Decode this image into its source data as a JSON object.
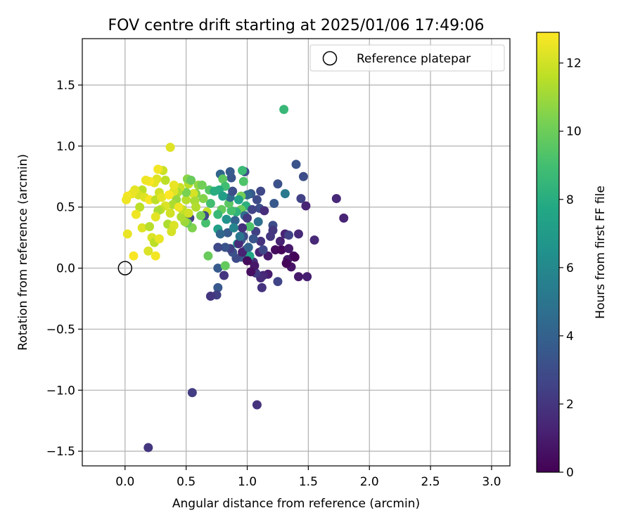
{
  "chart_data": {
    "type": "scatter",
    "title": "FOV centre drift starting at 2025/01/06 17:49:06",
    "xlabel": "Angular distance from reference (arcmin)",
    "ylabel": "Rotation from reference (arcmin)",
    "xlim": [
      -0.35,
      3.15
    ],
    "ylim": [
      -1.62,
      1.88
    ],
    "xticks": [
      0.0,
      0.5,
      1.0,
      1.5,
      2.0,
      2.5,
      3.0
    ],
    "xtick_labels": [
      "0.0",
      "0.5",
      "1.0",
      "1.5",
      "2.0",
      "2.5",
      "3.0"
    ],
    "yticks": [
      -1.5,
      -1.0,
      -0.5,
      0.0,
      0.5,
      1.0,
      1.5
    ],
    "ytick_labels": [
      "−1.5",
      "−1.0",
      "−0.5",
      "0.0",
      "0.5",
      "1.0",
      "1.5"
    ],
    "grid": true,
    "legend": {
      "placement": "top-right",
      "entries": [
        "Reference platepar"
      ]
    },
    "reference_point": {
      "x": 0.0,
      "y": 0.0
    },
    "colorbar": {
      "label": "Hours from first FF file",
      "range": [
        0,
        12.9
      ],
      "ticks": [
        0,
        2,
        4,
        6,
        8,
        10,
        12
      ],
      "tick_labels": [
        "0",
        "2",
        "4",
        "6",
        "8",
        "10",
        "12"
      ],
      "colormap": "viridis"
    },
    "points": [
      {
        "x": 0.19,
        "y": -1.47,
        "t": 2.0
      },
      {
        "x": 0.55,
        "y": -1.02,
        "t": 2.3
      },
      {
        "x": 1.08,
        "y": -1.12,
        "t": 1.9
      },
      {
        "x": 1.3,
        "y": 1.3,
        "t": 8.6
      },
      {
        "x": 0.37,
        "y": 0.99,
        "t": 12.3
      },
      {
        "x": 1.4,
        "y": 0.85,
        "t": 3.3
      },
      {
        "x": 1.46,
        "y": 0.75,
        "t": 3.0
      },
      {
        "x": 1.44,
        "y": 0.57,
        "t": 2.5
      },
      {
        "x": 1.48,
        "y": 0.51,
        "t": 1.3
      },
      {
        "x": 1.73,
        "y": 0.57,
        "t": 1.5
      },
      {
        "x": 1.79,
        "y": 0.41,
        "t": 1.3
      },
      {
        "x": 1.55,
        "y": 0.23,
        "t": 1.5
      },
      {
        "x": 1.49,
        "y": -0.07,
        "t": 1.1
      },
      {
        "x": 1.42,
        "y": -0.07,
        "t": 0.9
      },
      {
        "x": 1.36,
        "y": 0.01,
        "t": 0.7
      },
      {
        "x": 1.33,
        "y": 0.07,
        "t": 0.8
      },
      {
        "x": 1.38,
        "y": 0.1,
        "t": 0.6
      },
      {
        "x": 1.31,
        "y": 0.28,
        "t": 1.3
      },
      {
        "x": 1.34,
        "y": 0.27,
        "t": 2.5
      },
      {
        "x": 1.42,
        "y": 0.28,
        "t": 1.5
      },
      {
        "x": 1.31,
        "y": 0.61,
        "t": 5.2
      },
      {
        "x": 1.25,
        "y": 0.69,
        "t": 3.2
      },
      {
        "x": 1.22,
        "y": 0.53,
        "t": 3.6
      },
      {
        "x": 1.21,
        "y": 0.35,
        "t": 3.0
      },
      {
        "x": 1.21,
        "y": 0.31,
        "t": 2.0
      },
      {
        "x": 1.23,
        "y": 0.15,
        "t": 0.4
      },
      {
        "x": 1.17,
        "y": -0.05,
        "t": 1.0
      },
      {
        "x": 1.13,
        "y": -0.06,
        "t": 1.4
      },
      {
        "x": 1.11,
        "y": -0.08,
        "t": 1.6
      },
      {
        "x": 1.12,
        "y": -0.16,
        "t": 1.9
      },
      {
        "x": 1.25,
        "y": -0.11,
        "t": 2.6
      },
      {
        "x": 1.07,
        "y": -0.04,
        "t": 2.2
      },
      {
        "x": 1.05,
        "y": 0.05,
        "t": 1.7
      },
      {
        "x": 1.1,
        "y": 0.13,
        "t": 1.3
      },
      {
        "x": 1.11,
        "y": 0.22,
        "t": 1.9
      },
      {
        "x": 1.07,
        "y": 0.3,
        "t": 2.4
      },
      {
        "x": 1.09,
        "y": 0.38,
        "t": 4.7
      },
      {
        "x": 1.1,
        "y": 0.49,
        "t": 3.0
      },
      {
        "x": 1.11,
        "y": 0.63,
        "t": 2.8
      },
      {
        "x": 1.03,
        "y": 0.61,
        "t": 3.6
      },
      {
        "x": 1.0,
        "y": 0.6,
        "t": 4.4
      },
      {
        "x": 0.98,
        "y": 0.79,
        "t": 3.0
      },
      {
        "x": 0.96,
        "y": 0.8,
        "t": 8.7
      },
      {
        "x": 0.97,
        "y": 0.71,
        "t": 9.3
      },
      {
        "x": 0.95,
        "y": 0.59,
        "t": 10.1
      },
      {
        "x": 0.93,
        "y": 0.56,
        "t": 7.4
      },
      {
        "x": 0.99,
        "y": 0.51,
        "t": 8.2
      },
      {
        "x": 0.95,
        "y": 0.48,
        "t": 9.9
      },
      {
        "x": 0.91,
        "y": 0.46,
        "t": 8.3
      },
      {
        "x": 0.98,
        "y": 0.43,
        "t": 4.6
      },
      {
        "x": 1.02,
        "y": 0.34,
        "t": 9.3
      },
      {
        "x": 0.97,
        "y": 0.26,
        "t": 3.0
      },
      {
        "x": 0.95,
        "y": 0.23,
        "t": 3.5
      },
      {
        "x": 0.92,
        "y": 0.2,
        "t": 6.8
      },
      {
        "x": 0.99,
        "y": 0.15,
        "t": 2.3
      },
      {
        "x": 1.02,
        "y": 0.1,
        "t": 7.6
      },
      {
        "x": 0.95,
        "y": 0.09,
        "t": 3.7
      },
      {
        "x": 0.91,
        "y": 0.08,
        "t": 2.9
      },
      {
        "x": 0.88,
        "y": 0.13,
        "t": 3.2
      },
      {
        "x": 0.86,
        "y": 0.16,
        "t": 2.4
      },
      {
        "x": 0.82,
        "y": 0.17,
        "t": 3.3
      },
      {
        "x": 0.84,
        "y": 0.29,
        "t": 3.7
      },
      {
        "x": 0.9,
        "y": 0.39,
        "t": 4.1
      },
      {
        "x": 0.87,
        "y": 0.47,
        "t": 9.1
      },
      {
        "x": 0.85,
        "y": 0.53,
        "t": 9.6
      },
      {
        "x": 0.86,
        "y": 0.58,
        "t": 4.5
      },
      {
        "x": 0.88,
        "y": 0.63,
        "t": 3.1
      },
      {
        "x": 0.87,
        "y": 0.74,
        "t": 3.4
      },
      {
        "x": 0.86,
        "y": 0.79,
        "t": 3.7
      },
      {
        "x": 0.78,
        "y": 0.77,
        "t": 4.2
      },
      {
        "x": 0.8,
        "y": 0.73,
        "t": 9.6
      },
      {
        "x": 0.82,
        "y": 0.67,
        "t": 8.9
      },
      {
        "x": 0.77,
        "y": 0.64,
        "t": 7.9
      },
      {
        "x": 0.79,
        "y": 0.48,
        "t": 9.8
      },
      {
        "x": 0.76,
        "y": 0.44,
        "t": 8.6
      },
      {
        "x": 0.76,
        "y": 0.32,
        "t": 7.3
      },
      {
        "x": 0.78,
        "y": 0.28,
        "t": 4.3
      },
      {
        "x": 0.76,
        "y": 0.17,
        "t": 2.8
      },
      {
        "x": 0.76,
        "y": 0.0,
        "t": 3.7
      },
      {
        "x": 0.81,
        "y": -0.06,
        "t": 2.0
      },
      {
        "x": 0.76,
        "y": -0.16,
        "t": 3.6
      },
      {
        "x": 0.75,
        "y": -0.22,
        "t": 2.4
      },
      {
        "x": 0.7,
        "y": -0.23,
        "t": 2.0
      },
      {
        "x": 0.82,
        "y": 0.02,
        "t": 9.8
      },
      {
        "x": 0.68,
        "y": 0.1,
        "t": 9.9
      },
      {
        "x": 0.66,
        "y": 0.37,
        "t": 9.1
      },
      {
        "x": 0.67,
        "y": 0.46,
        "t": 11.8
      },
      {
        "x": 0.65,
        "y": 0.43,
        "t": 2.9
      },
      {
        "x": 0.62,
        "y": 0.43,
        "t": 10.2
      },
      {
        "x": 0.58,
        "y": 0.61,
        "t": 10.4
      },
      {
        "x": 0.56,
        "y": 0.61,
        "t": 12.1
      },
      {
        "x": 0.57,
        "y": 0.55,
        "t": 11.2
      },
      {
        "x": 0.53,
        "y": 0.41,
        "t": 2.4
      },
      {
        "x": 0.55,
        "y": 0.33,
        "t": 10.4
      },
      {
        "x": 0.51,
        "y": 0.37,
        "t": 9.9
      },
      {
        "x": 0.49,
        "y": 0.38,
        "t": 11.0
      },
      {
        "x": 0.46,
        "y": 0.42,
        "t": 11.3
      },
      {
        "x": 0.47,
        "y": 0.48,
        "t": 11.7
      },
      {
        "x": 0.5,
        "y": 0.56,
        "t": 11.5
      },
      {
        "x": 0.5,
        "y": 0.62,
        "t": 10.3
      },
      {
        "x": 0.52,
        "y": 0.69,
        "t": 11.6
      },
      {
        "x": 0.51,
        "y": 0.73,
        "t": 10.6
      },
      {
        "x": 0.54,
        "y": 0.72,
        "t": 9.9
      },
      {
        "x": 0.6,
        "y": 0.68,
        "t": 10.8
      },
      {
        "x": 0.63,
        "y": 0.68,
        "t": 10.1
      },
      {
        "x": 0.69,
        "y": 0.64,
        "t": 9.5
      },
      {
        "x": 0.45,
        "y": 0.66,
        "t": 11.9
      },
      {
        "x": 0.43,
        "y": 0.62,
        "t": 11.2
      },
      {
        "x": 0.42,
        "y": 0.56,
        "t": 10.9
      },
      {
        "x": 0.39,
        "y": 0.52,
        "t": 11.3
      },
      {
        "x": 0.37,
        "y": 0.45,
        "t": 12.0
      },
      {
        "x": 0.35,
        "y": 0.36,
        "t": 11.3
      },
      {
        "x": 0.4,
        "y": 0.35,
        "t": 12.2
      },
      {
        "x": 0.38,
        "y": 0.3,
        "t": 12.1
      },
      {
        "x": 0.4,
        "y": 0.63,
        "t": 12.3
      },
      {
        "x": 0.4,
        "y": 0.68,
        "t": 12.5
      },
      {
        "x": 0.33,
        "y": 0.72,
        "t": 11.6
      },
      {
        "x": 0.31,
        "y": 0.8,
        "t": 11.9
      },
      {
        "x": 0.27,
        "y": 0.81,
        "t": 12.7
      },
      {
        "x": 0.26,
        "y": 0.73,
        "t": 12.3
      },
      {
        "x": 0.24,
        "y": 0.7,
        "t": 12.4
      },
      {
        "x": 0.2,
        "y": 0.71,
        "t": 12.8
      },
      {
        "x": 0.17,
        "y": 0.72,
        "t": 12.6
      },
      {
        "x": 0.14,
        "y": 0.64,
        "t": 11.6
      },
      {
        "x": 0.11,
        "y": 0.6,
        "t": 12.1
      },
      {
        "x": 0.08,
        "y": 0.64,
        "t": 12.4
      },
      {
        "x": 0.06,
        "y": 0.61,
        "t": 12.5
      },
      {
        "x": 0.02,
        "y": 0.59,
        "t": 12.7
      },
      {
        "x": 0.01,
        "y": 0.56,
        "t": 12.6
      },
      {
        "x": 0.16,
        "y": 0.58,
        "t": 12.3
      },
      {
        "x": 0.2,
        "y": 0.56,
        "t": 12.8
      },
      {
        "x": 0.25,
        "y": 0.56,
        "t": 11.6
      },
      {
        "x": 0.28,
        "y": 0.62,
        "t": 12.0
      },
      {
        "x": 0.3,
        "y": 0.58,
        "t": 12.4
      },
      {
        "x": 0.33,
        "y": 0.51,
        "t": 12.2
      },
      {
        "x": 0.29,
        "y": 0.48,
        "t": 11.7
      },
      {
        "x": 0.27,
        "y": 0.47,
        "t": 11.3
      },
      {
        "x": 0.25,
        "y": 0.42,
        "t": 12.4
      },
      {
        "x": 0.12,
        "y": 0.5,
        "t": 11.6
      },
      {
        "x": 0.09,
        "y": 0.44,
        "t": 12.6
      },
      {
        "x": 0.14,
        "y": 0.33,
        "t": 12.3
      },
      {
        "x": 0.2,
        "y": 0.34,
        "t": 11.5
      },
      {
        "x": 0.22,
        "y": 0.25,
        "t": 12.2
      },
      {
        "x": 0.24,
        "y": 0.21,
        "t": 11.6
      },
      {
        "x": 0.28,
        "y": 0.24,
        "t": 12.5
      },
      {
        "x": 0.19,
        "y": 0.14,
        "t": 12.2
      },
      {
        "x": 0.25,
        "y": 0.1,
        "t": 12.7
      },
      {
        "x": 0.07,
        "y": 0.1,
        "t": 12.8
      },
      {
        "x": 0.02,
        "y": 0.28,
        "t": 12.5
      },
      {
        "x": 1.06,
        "y": 0.02,
        "t": 0.8
      },
      {
        "x": 1.03,
        "y": -0.03,
        "t": 0.5
      },
      {
        "x": 1.0,
        "y": 0.06,
        "t": 0.4
      },
      {
        "x": 0.96,
        "y": 0.13,
        "t": 1.2
      },
      {
        "x": 0.93,
        "y": 0.2,
        "t": 1.6
      },
      {
        "x": 0.96,
        "y": 0.33,
        "t": 1.8
      },
      {
        "x": 1.0,
        "y": 0.41,
        "t": 2.1
      },
      {
        "x": 1.04,
        "y": 0.48,
        "t": 2.6
      },
      {
        "x": 1.08,
        "y": 0.56,
        "t": 2.9
      },
      {
        "x": 1.14,
        "y": 0.47,
        "t": 1.7
      },
      {
        "x": 1.17,
        "y": 0.1,
        "t": 0.9
      },
      {
        "x": 1.28,
        "y": 0.15,
        "t": 0.3
      },
      {
        "x": 1.32,
        "y": 0.04,
        "t": 0.2
      },
      {
        "x": 1.39,
        "y": 0.09,
        "t": 0.1
      },
      {
        "x": 1.34,
        "y": 0.16,
        "t": 0.9
      },
      {
        "x": 1.27,
        "y": 0.22,
        "t": 1.2
      },
      {
        "x": 1.19,
        "y": 0.26,
        "t": 2.0
      },
      {
        "x": 1.13,
        "y": 0.15,
        "t": 2.7
      },
      {
        "x": 1.05,
        "y": 0.24,
        "t": 3.4
      },
      {
        "x": 1.01,
        "y": 0.17,
        "t": 4.1
      },
      {
        "x": 0.94,
        "y": 0.26,
        "t": 5.0
      },
      {
        "x": 0.89,
        "y": 0.33,
        "t": 5.8
      },
      {
        "x": 0.83,
        "y": 0.4,
        "t": 6.5
      },
      {
        "x": 0.8,
        "y": 0.59,
        "t": 7.2
      },
      {
        "x": 0.73,
        "y": 0.63,
        "t": 8.0
      },
      {
        "x": 0.7,
        "y": 0.53,
        "t": 9.0
      },
      {
        "x": 0.64,
        "y": 0.57,
        "t": 10.5
      },
      {
        "x": 0.58,
        "y": 0.5,
        "t": 11.4
      },
      {
        "x": 0.52,
        "y": 0.45,
        "t": 12.0
      },
      {
        "x": 0.44,
        "y": 0.5,
        "t": 12.6
      },
      {
        "x": 0.36,
        "y": 0.6,
        "t": 12.9
      }
    ]
  }
}
